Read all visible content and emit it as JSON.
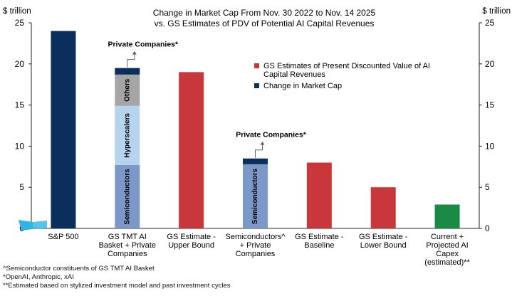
{
  "chart_data": {
    "type": "bar",
    "title_line1": "Change in Market Cap From Nov. 30 2022 to Nov. 14 2025",
    "title_line2": "vs. GS Estimates of PDV of Potential AI Capital Revenues",
    "y_unit_left": "$ trillion",
    "y_unit_right": "$ trillion",
    "ylim": [
      0,
      25
    ],
    "yticks": [
      0,
      5,
      10,
      15,
      20,
      25
    ],
    "grid": false,
    "legend": {
      "placement": "top-right",
      "entries": [
        {
          "label": "GS Estimates of Present Discounted Value of AI Capital Revenues",
          "color": "#c8383b"
        },
        {
          "label": "Change in Market Cap",
          "color": "#0a2f5c"
        }
      ]
    },
    "categories": [
      [
        "S&P 500"
      ],
      [
        "GS TMT AI",
        "Basket + Private",
        "Companies"
      ],
      [
        "GS Estimate -",
        "Upper Bound"
      ],
      [
        "Semiconductors^",
        "+ Private",
        "Companies"
      ],
      [
        "GS Estimate -",
        "Baseline"
      ],
      [
        "GS Estimate -",
        "Lower Bound"
      ],
      [
        "Current +",
        "Projected AI",
        "Capex",
        "(estimated)**"
      ]
    ],
    "bars": [
      {
        "segments": [
          {
            "name": "",
            "value": 24.0,
            "color": "#0a2f5c"
          }
        ]
      },
      {
        "segments": [
          {
            "name": "Semiconductors",
            "value": 7.7,
            "color": "#7b98c8"
          },
          {
            "name": "Hyperscalers",
            "value": 7.2,
            "color": "#b7d4ef"
          },
          {
            "name": "Others",
            "value": 3.8,
            "color": "#a5a5a5"
          },
          {
            "name": "",
            "value": 0.8,
            "color": "#0a2f5c"
          }
        ]
      },
      {
        "segments": [
          {
            "name": "",
            "value": 19.0,
            "color": "#c8383b"
          }
        ]
      },
      {
        "segments": [
          {
            "name": "Semiconductors",
            "value": 7.8,
            "color": "#7b98c8"
          },
          {
            "name": "",
            "value": 0.7,
            "color": "#0a2f5c"
          }
        ]
      },
      {
        "segments": [
          {
            "name": "",
            "value": 8.0,
            "color": "#c8383b"
          }
        ]
      },
      {
        "segments": [
          {
            "name": "",
            "value": 5.0,
            "color": "#c8383b"
          }
        ]
      },
      {
        "segments": [
          {
            "name": "",
            "value": 2.9,
            "color": "#1a8a45"
          }
        ]
      }
    ],
    "annotations": [
      {
        "text": "Private Companies*",
        "bar_index": 1
      },
      {
        "text": "Private Companies*",
        "bar_index": 3
      }
    ]
  },
  "footnotes": [
    "^Semiconductor constituents of GS TMT AI Basket",
    "*OpenAI, Anthropic, xAI",
    "**Estimated based on stylized investment model and past investment cycles"
  ]
}
